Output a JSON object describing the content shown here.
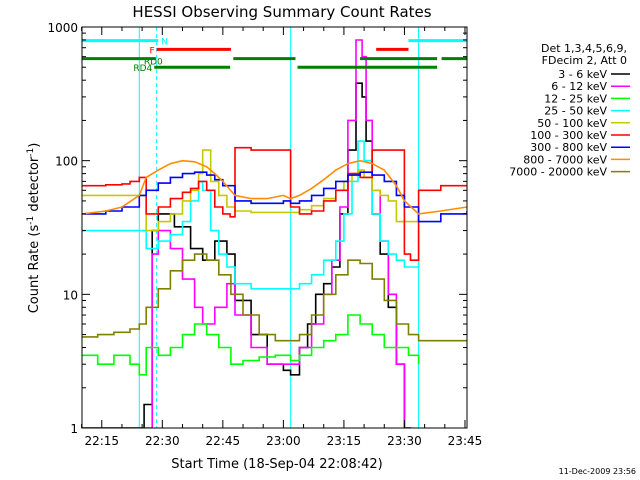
{
  "chart_data": {
    "type": "line",
    "title": "HESSI Observing Summary Count Rates",
    "xlabel": "Start Time (18-Sep-04 22:08:42)",
    "ylabel_main": "Count Rate (s",
    "ylabel_sup1": "-1",
    "ylabel_mid": " detector",
    "ylabel_sup2": "-1",
    "ylabel_end": ")",
    "yscale": "log",
    "ylim": [
      1,
      1000
    ],
    "xlim": [
      488.7,
      1427.5
    ],
    "x_unit": "minutes after 22:00 on 18-Sep-04",
    "x_ticks": [
      {
        "v": 615,
        "label": "22:15"
      },
      {
        "v": 630,
        "label": "22:30"
      },
      {
        "v": 645,
        "label": "22:45"
      },
      {
        "v": 660,
        "label": "23:00"
      },
      {
        "v": 675,
        "label": "23:15"
      },
      {
        "v": 690,
        "label": "23:30"
      },
      {
        "v": 705,
        "label": "23:45"
      }
    ],
    "y_ticks": [
      {
        "v": 1,
        "label": "1"
      },
      {
        "v": 10,
        "label": "10"
      },
      {
        "v": 100,
        "label": "100"
      },
      {
        "v": 1000,
        "label": "1000"
      }
    ],
    "legend": {
      "placement": "right",
      "header": [
        "Det 1,3,4,5,6,9,",
        "FDecim 2, Att 0"
      ],
      "entries": [
        {
          "label": "3 - 6 keV",
          "color": "#000000"
        },
        {
          "label": "6 - 12 keV",
          "color": "#ff00ff"
        },
        {
          "label": "12 - 25 keV",
          "color": "#00ff00"
        },
        {
          "label": "25 - 50 keV",
          "color": "#00ffff"
        },
        {
          "label": "50 - 100 keV",
          "color": "#c8c800"
        },
        {
          "label": "100 - 300 keV",
          "color": "#ff0000"
        },
        {
          "label": "300 - 800 keV",
          "color": "#0000ff"
        },
        {
          "label": "800 - 7000 keV",
          "color": "#ff8c00"
        },
        {
          "label": "7000 - 20000 keV",
          "color": "#808000"
        }
      ]
    },
    "flags": [
      {
        "label": "N",
        "color": "#00ffff",
        "label_side": "right",
        "y": 790,
        "segments": [
          [
            610.1,
            629.0
          ],
          [
            691.0,
            705.5
          ]
        ]
      },
      {
        "label": "F",
        "color": "#ff0000",
        "label_side": "left",
        "y": 680,
        "segments": [
          [
            628.6,
            647.0
          ],
          [
            683.0,
            691.0
          ]
        ]
      },
      {
        "label": "RD0",
        "color": "#008000",
        "label_side": "right",
        "y": 580,
        "segments": [
          [
            610.1,
            628.4
          ],
          [
            647.6,
            663.0
          ],
          [
            679.0,
            698.1
          ],
          [
            699.2,
            705.5
          ]
        ]
      },
      {
        "label": "RD4",
        "color": "#008000",
        "label_side": "left",
        "y": 500,
        "segments": [
          [
            628.0,
            646.8
          ],
          [
            663.5,
            698.1
          ]
        ]
      }
    ],
    "vlines": [
      {
        "x": 628.6,
        "color": "#00ffff",
        "dashed": true
      },
      {
        "x": 705.5,
        "color": "#00ffff",
        "dashed": true
      },
      {
        "x": 624.3,
        "color": "#00ffff",
        "dashed": false
      },
      {
        "x": 661.8,
        "color": "#00ffff",
        "dashed": false
      },
      {
        "x": 693.5,
        "color": "#00ffff",
        "dashed": false
      }
    ],
    "series": [
      {
        "name": "3 - 6 keV",
        "color": "#000000",
        "step": true,
        "x": [
          610.1,
          624.3,
          625.5,
          627.5,
          629,
          633,
          637,
          640,
          643,
          646,
          648,
          652,
          656,
          660,
          661.8,
          664,
          666,
          668,
          670,
          672,
          674,
          676,
          678,
          679.5,
          680.5,
          682,
          684,
          686,
          688,
          690,
          691.5,
          693.5
        ],
        "y": [
          1,
          1,
          1.5,
          30,
          40,
          32,
          22,
          18,
          25,
          20,
          9,
          5,
          3,
          2.7,
          2.5,
          4,
          6,
          10,
          12,
          16,
          40,
          120,
          380,
          300,
          140,
          40,
          20,
          8,
          3,
          1,
          0.8,
          0.8
        ]
      },
      {
        "name": "6 - 12 keV",
        "color": "#ff00ff",
        "step": true,
        "x": [
          610.1,
          624.3,
          625.5,
          627.5,
          629,
          632,
          635,
          638,
          640,
          643,
          646,
          648,
          652,
          656,
          660,
          661.8,
          664,
          667,
          670,
          672,
          674,
          676,
          678,
          679.5,
          680.5,
          682,
          684,
          686,
          688,
          690,
          691.5
        ],
        "y": [
          1,
          1,
          1,
          20,
          30,
          22,
          13,
          8,
          6,
          8,
          12,
          7,
          4,
          3,
          3,
          3,
          4,
          6,
          10,
          18,
          45,
          200,
          800,
          600,
          200,
          60,
          25,
          10,
          3,
          1,
          0.8
        ]
      },
      {
        "name": "12 - 25 keV",
        "color": "#00ff00",
        "step": true,
        "x": [
          610.1,
          614,
          618,
          622,
          624.3,
          626,
          629,
          632,
          635,
          638,
          641,
          644,
          647,
          650,
          654,
          658,
          661.8,
          664,
          667,
          670,
          673,
          676,
          679,
          682,
          685,
          688,
          691,
          693.5
        ],
        "y": [
          3.5,
          3,
          3.5,
          3,
          2.5,
          4,
          3.5,
          4,
          5,
          6,
          5,
          4,
          3,
          3.2,
          3.4,
          3.5,
          3.2,
          3.5,
          4,
          4.5,
          5,
          7,
          6,
          5,
          4,
          4,
          3.5,
          3
        ]
      },
      {
        "name": "25 - 50 keV",
        "color": "#00ffff",
        "step": true,
        "x": [
          610.1,
          616,
          622,
          624.3,
          626,
          629,
          632,
          635,
          637,
          639,
          640,
          642,
          644,
          646,
          648,
          652,
          656,
          660,
          661.8,
          664,
          667,
          670,
          673,
          675,
          677,
          678.5,
          680,
          682,
          684,
          686,
          688,
          690,
          693.5
        ],
        "y": [
          30,
          30,
          30,
          30,
          22,
          25,
          28,
          35,
          50,
          70,
          60,
          30,
          20,
          16,
          12,
          11,
          11,
          11,
          11,
          12,
          14,
          18,
          25,
          40,
          70,
          140,
          100,
          40,
          25,
          20,
          18,
          16,
          30
        ]
      },
      {
        "name": "50 - 100 keV",
        "color": "#c8c800",
        "step": true,
        "x": [
          610.1,
          616,
          622,
          624.3,
          626,
          629,
          632,
          635,
          637,
          639,
          640,
          642,
          644,
          646,
          648,
          652,
          656,
          660,
          661.8,
          664,
          667,
          670,
          673,
          675,
          677,
          678.5,
          680,
          682,
          684,
          686,
          688,
          690,
          693.5
        ],
        "y": [
          55,
          55,
          55,
          55,
          30,
          35,
          40,
          50,
          60,
          80,
          120,
          70,
          55,
          45,
          42,
          41,
          41,
          41,
          41,
          43,
          46,
          52,
          60,
          70,
          80,
          85,
          75,
          60,
          55,
          50,
          35,
          35,
          40
        ]
      },
      {
        "name": "100 - 300 keV",
        "color": "#ff0000",
        "step": true,
        "x": [
          610.1,
          616,
          620,
          622,
          624.3,
          626,
          629,
          632,
          635,
          637,
          639,
          641,
          643,
          645,
          646.8,
          648,
          652,
          656,
          660,
          661.8,
          664,
          667,
          670,
          673,
          676,
          679,
          682,
          685,
          688,
          690,
          691.5,
          693.5,
          699,
          705.5
        ],
        "y": [
          65,
          66,
          67,
          70,
          75,
          40,
          45,
          52,
          58,
          62,
          70,
          60,
          45,
          40,
          38,
          125,
          120,
          120,
          120,
          45,
          40,
          42,
          50,
          60,
          80,
          75,
          120,
          120,
          120,
          20,
          18,
          60,
          65,
          65
        ]
      },
      {
        "name": "300 - 800 keV",
        "color": "#0000ff",
        "step": true,
        "x": [
          610.1,
          616,
          620,
          624.3,
          626,
          629,
          632,
          635,
          638,
          641,
          643,
          645,
          648,
          652,
          656,
          660,
          661.8,
          664,
          667,
          670,
          673,
          676,
          679,
          682,
          685,
          688,
          690,
          693.5,
          699,
          705.5
        ],
        "y": [
          40,
          42,
          45,
          55,
          60,
          68,
          75,
          80,
          82,
          78,
          72,
          65,
          50,
          48,
          48,
          50,
          48,
          50,
          55,
          62,
          70,
          78,
          82,
          78,
          70,
          55,
          45,
          35,
          40,
          42
        ]
      },
      {
        "name": "800 - 7000 keV",
        "color": "#ff8c00",
        "step": false,
        "x": [
          610.1,
          616,
          620,
          624.3,
          626,
          629,
          632,
          635,
          638,
          641,
          643,
          645,
          648,
          652,
          656,
          660,
          661.8,
          664,
          667,
          670,
          673,
          676,
          679,
          682,
          685,
          688,
          690,
          693.5,
          699,
          705.5
        ],
        "y": [
          40,
          42,
          45,
          55,
          75,
          85,
          95,
          100,
          98,
          90,
          80,
          70,
          55,
          52,
          52,
          55,
          52,
          55,
          62,
          72,
          85,
          95,
          100,
          95,
          85,
          65,
          50,
          40,
          42,
          45
        ]
      },
      {
        "name": "7000 - 20000 keV",
        "color": "#808000",
        "step": true,
        "x": [
          610.1,
          614,
          618,
          622,
          624.3,
          626,
          629,
          632,
          635,
          638,
          641,
          644,
          647,
          650,
          654,
          658,
          661.8,
          664,
          667,
          670,
          673,
          676,
          679,
          682,
          685,
          688,
          691,
          693.5,
          699,
          705.5
        ],
        "y": [
          4.8,
          5,
          5.2,
          5.5,
          6,
          8,
          11,
          15,
          18,
          20,
          18,
          14,
          10,
          7,
          5,
          4.5,
          4.5,
          5,
          7,
          10,
          14,
          18,
          17,
          13,
          9,
          6,
          5,
          4.5,
          4.5,
          4.5
        ]
      }
    ],
    "timestamp": "11-Dec-2009 23:56"
  }
}
